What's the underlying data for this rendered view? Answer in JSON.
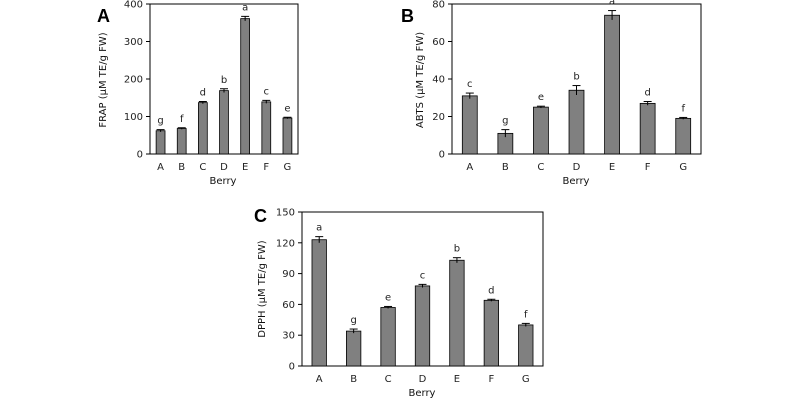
{
  "chart_data": [
    {
      "panel": "A",
      "type": "bar",
      "xlabel": "Berry",
      "ylabel": "FRAP (µM TE/g FW)",
      "categories": [
        "A",
        "B",
        "C",
        "D",
        "E",
        "F",
        "G"
      ],
      "values": [
        62,
        68,
        137,
        169,
        361,
        139,
        96
      ],
      "errors": [
        3,
        2,
        3,
        5,
        6,
        4,
        2
      ],
      "letters": [
        "g",
        "f",
        "d",
        "b",
        "a",
        "c",
        "e"
      ],
      "ylim": [
        0,
        400
      ],
      "yticks": [
        0,
        100,
        200,
        300,
        400
      ],
      "grid": false,
      "bar_color": "#808080"
    },
    {
      "panel": "B",
      "type": "bar",
      "xlabel": "Berry",
      "ylabel": "ABTS (µM TE/g FW)",
      "categories": [
        "A",
        "B",
        "C",
        "D",
        "E",
        "F",
        "G"
      ],
      "values": [
        31,
        11,
        25,
        34,
        74,
        27,
        19
      ],
      "errors": [
        1.5,
        2,
        0.5,
        2.5,
        2.5,
        1,
        0.5
      ],
      "letters": [
        "c",
        "g",
        "e",
        "b",
        "a",
        "d",
        "f"
      ],
      "ylim": [
        0,
        80
      ],
      "yticks": [
        0,
        20,
        40,
        60,
        80
      ],
      "grid": false,
      "bar_color": "#808080"
    },
    {
      "panel": "C",
      "type": "bar",
      "xlabel": "Berry",
      "ylabel": "DPPH (µM TE/g FW)",
      "categories": [
        "A",
        "B",
        "C",
        "D",
        "E",
        "F",
        "G"
      ],
      "values": [
        123,
        34,
        57,
        78,
        103,
        64,
        40
      ],
      "errors": [
        3,
        2,
        1,
        1.5,
        2.5,
        1,
        1.5
      ],
      "letters": [
        "a",
        "g",
        "e",
        "c",
        "b",
        "d",
        "f"
      ],
      "ylim": [
        0,
        150
      ],
      "yticks": [
        0,
        30,
        60,
        90,
        120,
        150
      ],
      "grid": false,
      "bar_color": "#808080"
    }
  ]
}
